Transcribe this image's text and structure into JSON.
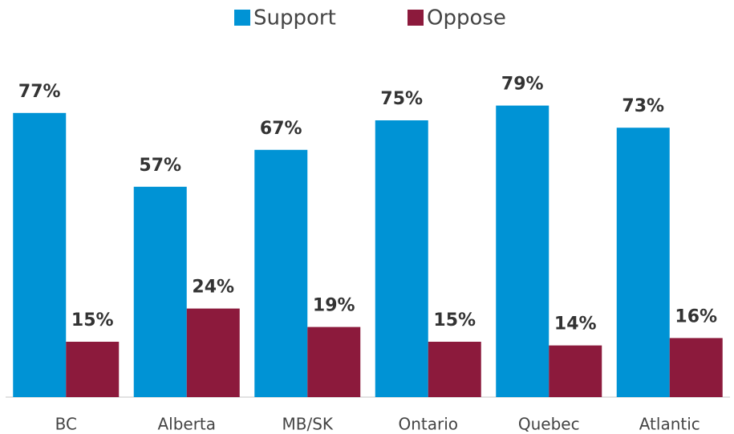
{
  "chart_data": {
    "type": "bar",
    "categories": [
      "BC",
      "Alberta",
      "MB/SK",
      "Ontario",
      "Quebec",
      "Atlantic"
    ],
    "series": [
      {
        "name": "Support",
        "color": "#0093d5",
        "values": [
          77,
          57,
          67,
          75,
          79,
          73
        ],
        "value_labels": [
          "77%",
          "57%",
          "67%",
          "75%",
          "79%",
          "73%"
        ]
      },
      {
        "name": "Oppose",
        "color": "#8c1a3c",
        "values": [
          15,
          24,
          19,
          15,
          14,
          16
        ],
        "value_labels": [
          "15%",
          "24%",
          "19%",
          "15%",
          "14%",
          "16%"
        ]
      }
    ],
    "ylim": [
      0,
      100
    ],
    "legend": "top"
  }
}
